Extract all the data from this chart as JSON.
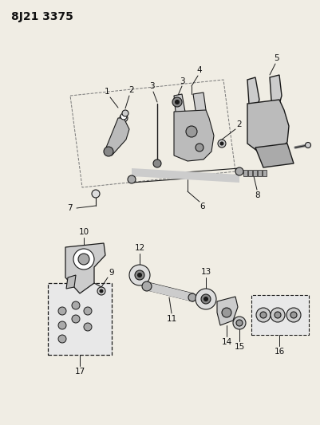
{
  "title": "8J21 3375",
  "bg_color": "#f0ede4",
  "line_color": "#1a1a1a",
  "text_color": "#111111",
  "title_fontsize": 10,
  "label_fontsize": 7.5,
  "figsize": [
    4.02,
    5.33
  ],
  "dpi": 100
}
